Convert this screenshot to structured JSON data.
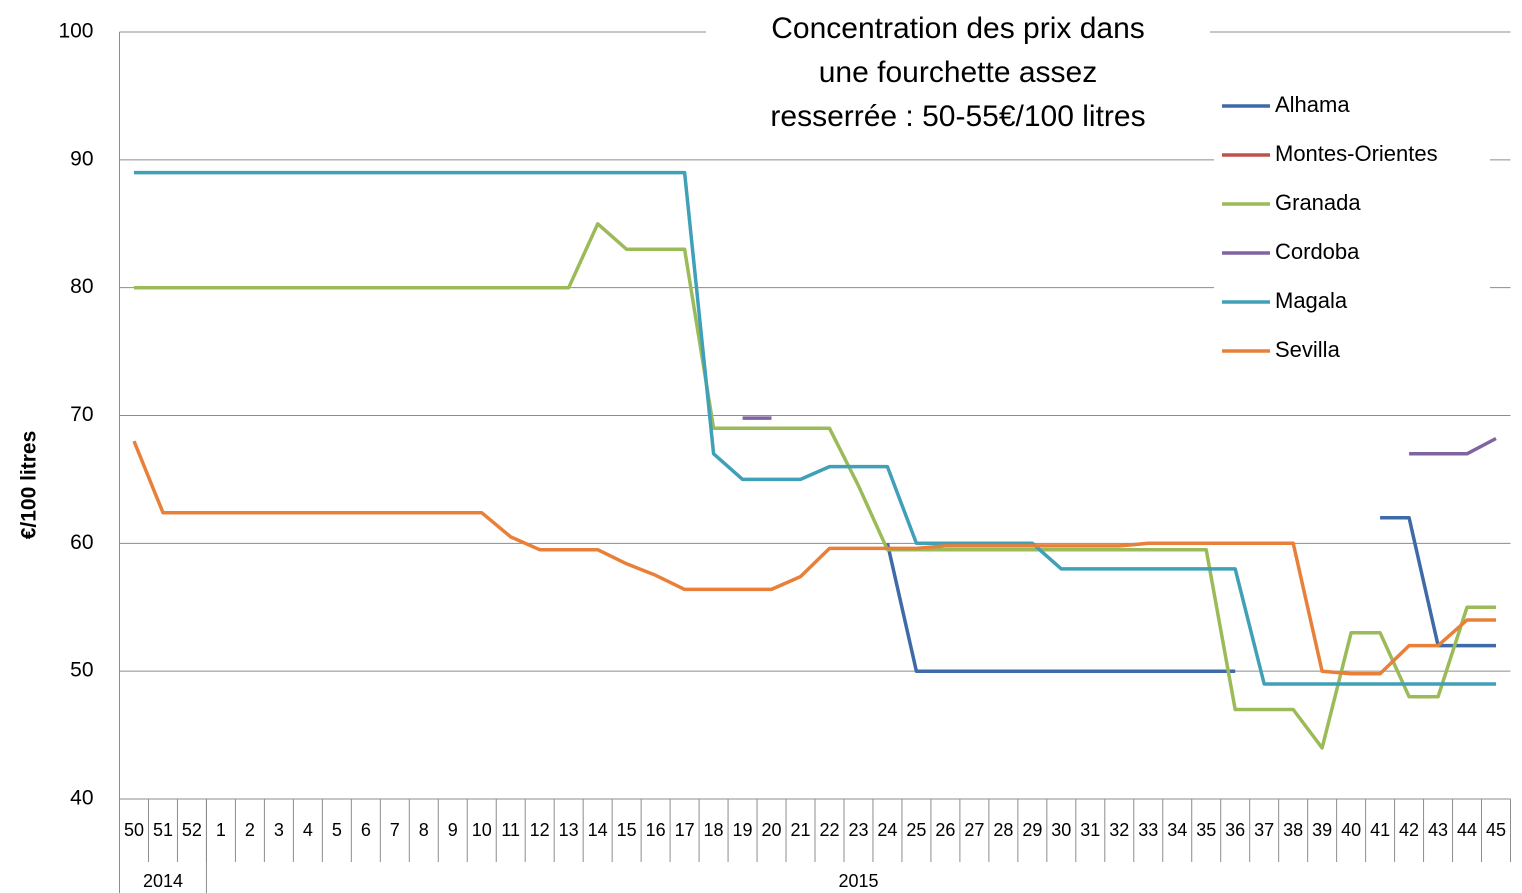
{
  "chart_data": {
    "type": "line",
    "title_lines": [
      "Concentration des prix dans",
      "une fourchette assez",
      "resserrée : 50-55€/100 litres"
    ],
    "y_label": "€/100 litres",
    "categories": [
      "50",
      "51",
      "52",
      "1",
      "2",
      "3",
      "4",
      "5",
      "6",
      "7",
      "8",
      "9",
      "10",
      "11",
      "12",
      "13",
      "14",
      "15",
      "16",
      "17",
      "18",
      "19",
      "20",
      "21",
      "22",
      "23",
      "24",
      "25",
      "26",
      "27",
      "28",
      "29",
      "30",
      "31",
      "32",
      "33",
      "34",
      "35",
      "36",
      "37",
      "38",
      "39",
      "40",
      "41",
      "42",
      "43",
      "44",
      "45"
    ],
    "year_groups": [
      {
        "label": "2014",
        "count": 3
      },
      {
        "label": "2015",
        "count": 45
      }
    ],
    "ylim": [
      40,
      100
    ],
    "yticks": [
      40,
      50,
      60,
      70,
      80,
      90,
      100
    ],
    "grid": true,
    "series": [
      {
        "name": "Alhama",
        "color": "#3e6aa8",
        "values": [
          null,
          null,
          null,
          null,
          null,
          null,
          null,
          null,
          null,
          null,
          null,
          null,
          null,
          null,
          null,
          null,
          null,
          null,
          null,
          null,
          null,
          null,
          null,
          null,
          null,
          null,
          60,
          50,
          50,
          50,
          50,
          50,
          50,
          50,
          50,
          50,
          50,
          50,
          50,
          null,
          null,
          null,
          null,
          62,
          62,
          52,
          52,
          52
        ]
      },
      {
        "name": "Montes-Orientes",
        "color": "#c0504d",
        "values": [
          null,
          null,
          null,
          null,
          null,
          null,
          null,
          null,
          null,
          null,
          null,
          null,
          null,
          null,
          null,
          null,
          null,
          null,
          null,
          null,
          null,
          null,
          null,
          null,
          null,
          null,
          null,
          null,
          null,
          null,
          null,
          null,
          null,
          null,
          null,
          null,
          null,
          null,
          null,
          null,
          null,
          null,
          null,
          null,
          null,
          null,
          null,
          null
        ]
      },
      {
        "name": "Granada",
        "color": "#9bbb59",
        "values": [
          80,
          80,
          80,
          80,
          80,
          80,
          80,
          80,
          80,
          80,
          80,
          80,
          80,
          80,
          80,
          80,
          85,
          83,
          83,
          83,
          69,
          69,
          69,
          69,
          69,
          64.5,
          59.5,
          59.5,
          59.5,
          59.5,
          59.5,
          59.5,
          59.5,
          59.5,
          59.5,
          59.5,
          59.5,
          59.5,
          47,
          47,
          47,
          44,
          53,
          53,
          48,
          48,
          55,
          55
        ]
      },
      {
        "name": "Cordoba",
        "color": "#8064a2",
        "values": [
          null,
          null,
          null,
          null,
          null,
          null,
          null,
          null,
          null,
          null,
          null,
          null,
          null,
          null,
          null,
          null,
          null,
          null,
          null,
          null,
          null,
          69.8,
          69.8,
          null,
          null,
          null,
          null,
          null,
          null,
          null,
          null,
          null,
          null,
          null,
          null,
          null,
          null,
          null,
          null,
          null,
          null,
          null,
          null,
          null,
          67,
          67,
          67,
          68.2
        ]
      },
      {
        "name": "Magala",
        "color": "#3fa0b8",
        "values": [
          89,
          89,
          89,
          89,
          89,
          89,
          89,
          89,
          89,
          89,
          89,
          89,
          89,
          89,
          89,
          89,
          89,
          89,
          89,
          89,
          67,
          65,
          65,
          65,
          66,
          66,
          66,
          60,
          60,
          60,
          60,
          60,
          58,
          58,
          58,
          58,
          58,
          58,
          58,
          49,
          49,
          49,
          49,
          49,
          49,
          49,
          49,
          49
        ]
      },
      {
        "name": "Sevilla",
        "color": "#e8803a",
        "values": [
          68,
          62.4,
          62.4,
          62.4,
          62.4,
          62.4,
          62.4,
          62.4,
          62.4,
          62.4,
          62.4,
          62.4,
          62.4,
          60.5,
          59.5,
          59.5,
          59.5,
          58.4,
          57.5,
          56.4,
          56.4,
          56.4,
          56.4,
          57.4,
          59.6,
          59.6,
          59.6,
          59.6,
          59.8,
          59.8,
          59.8,
          59.8,
          59.8,
          59.8,
          59.8,
          60,
          60,
          60,
          60,
          60,
          60,
          50,
          49.8,
          49.8,
          52,
          52,
          54,
          54
        ]
      }
    ]
  }
}
